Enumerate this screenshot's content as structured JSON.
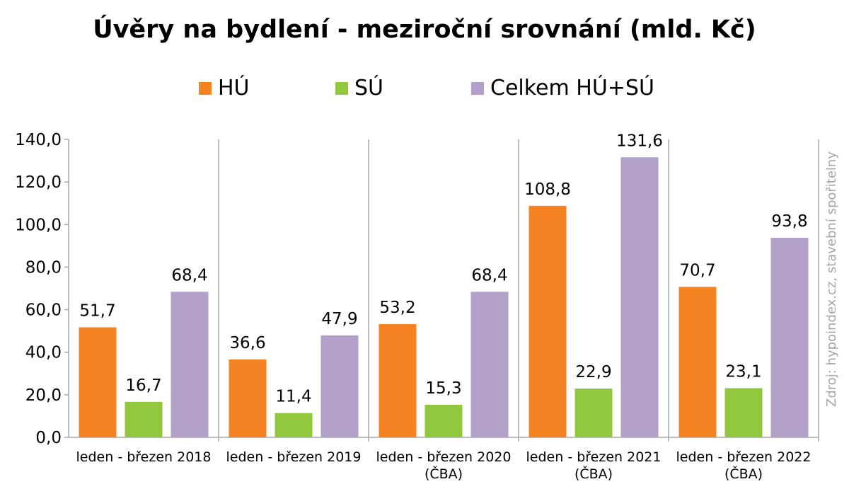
{
  "chart_data": {
    "type": "bar",
    "title": "Úvěry na bydlení - meziroční srovnání (mld. Kč)",
    "categories": [
      [
        "leden - březen 2018"
      ],
      [
        "leden - březen 2019"
      ],
      [
        "leden - březen 2020",
        "(ČBA)"
      ],
      [
        "leden - březen 2021",
        "(ČBA)"
      ],
      [
        "leden - březen 2022",
        "(ČBA)"
      ]
    ],
    "series": [
      {
        "name": "HÚ",
        "color": "#f58220",
        "values": [
          51.7,
          36.6,
          53.2,
          108.8,
          70.7
        ],
        "labels": [
          "51,7",
          "36,6",
          "53,2",
          "108,8",
          "70,7"
        ]
      },
      {
        "name": "SÚ",
        "color": "#92c83e",
        "values": [
          16.7,
          11.4,
          15.3,
          22.9,
          23.1
        ],
        "labels": [
          "16,7",
          "11,4",
          "15,3",
          "22,9",
          "23,1"
        ]
      },
      {
        "name": "Celkem HÚ+SÚ",
        "color": "#b3a0c9",
        "values": [
          68.4,
          47.9,
          68.4,
          131.6,
          93.8
        ],
        "labels": [
          "68,4",
          "47,9",
          "68,4",
          "131,6",
          "93,8"
        ]
      }
    ],
    "yticks": [
      "0,0",
      "20,0",
      "40,0",
      "60,0",
      "80,0",
      "100,0",
      "120,0",
      "140,0"
    ],
    "ylim": [
      0,
      140
    ],
    "ystep": 20,
    "legend_position": "top",
    "grid": false,
    "source": "Zdroj: hypoindex.cz, stavební spořitelny"
  }
}
